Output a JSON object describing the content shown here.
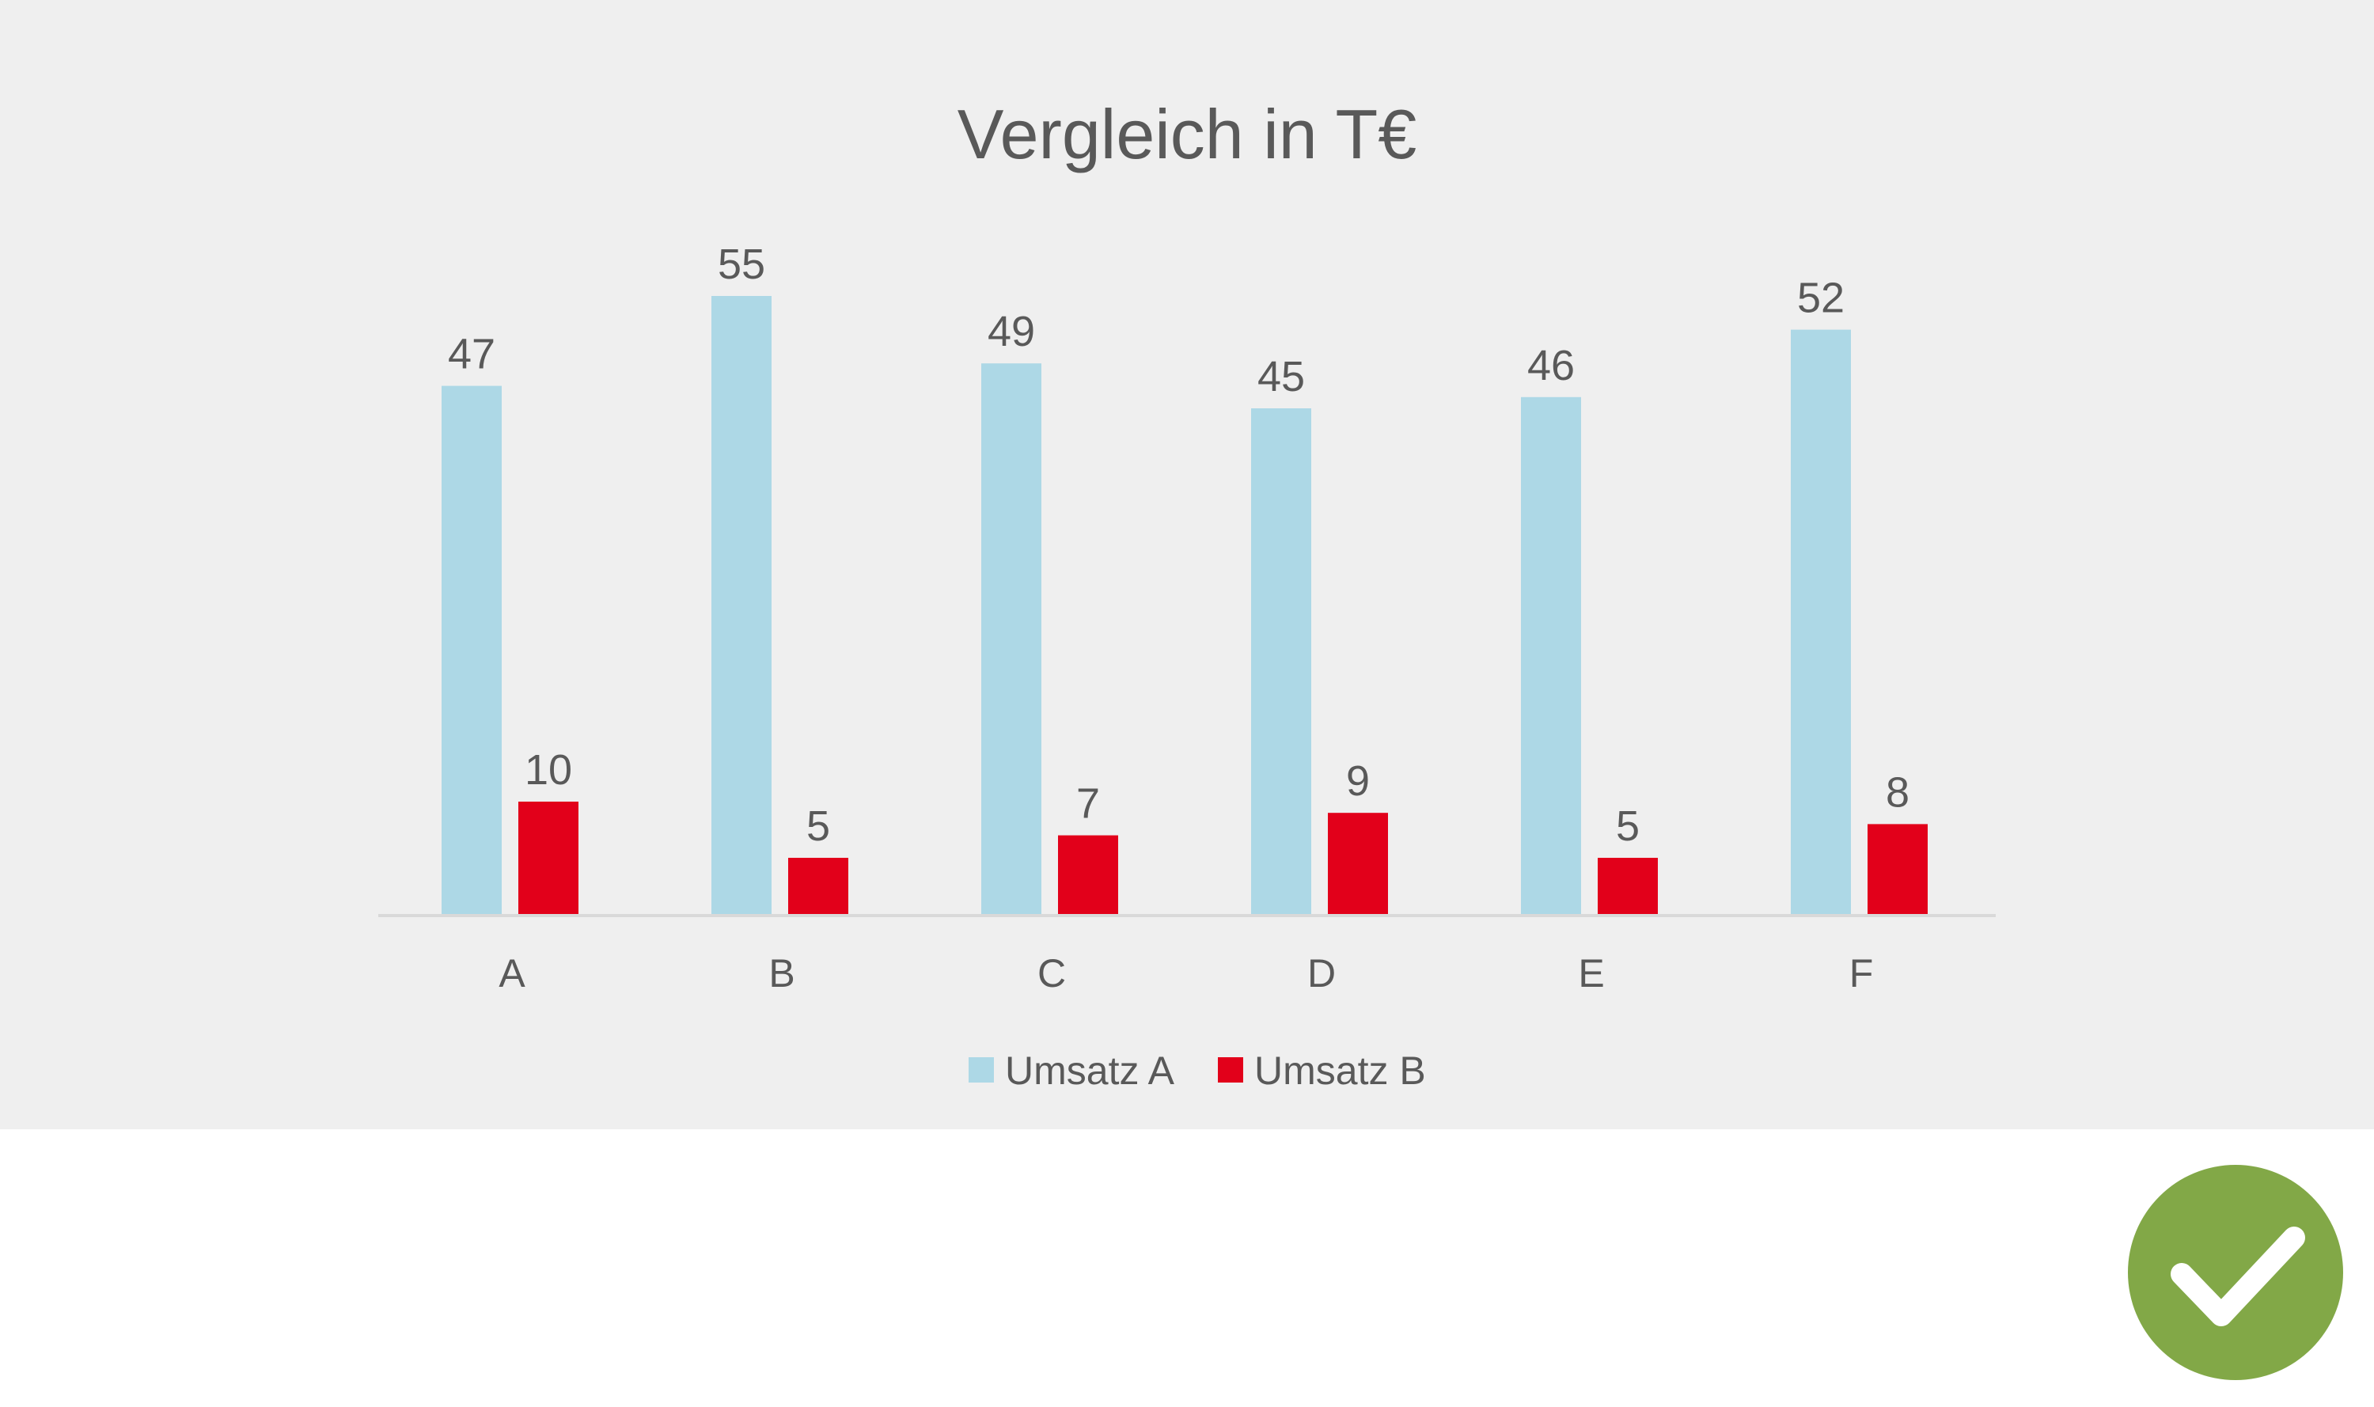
{
  "colors": {
    "panel_background": "#efefef",
    "series_a": "#add8e6",
    "series_b": "#e2001a",
    "text": "#595959",
    "axis": "#d9d9d9",
    "badge": "#82a847",
    "badge_check": "#ffffff"
  },
  "chart_data": {
    "type": "bar",
    "title": "Vergleich in T€",
    "categories": [
      "A",
      "B",
      "C",
      "D",
      "E",
      "F"
    ],
    "series": [
      {
        "name": "Umsatz A",
        "values": [
          47,
          55,
          49,
          45,
          46,
          52
        ]
      },
      {
        "name": "Umsatz B",
        "values": [
          10,
          5,
          7,
          9,
          5,
          8
        ]
      }
    ],
    "xlabel": "",
    "ylabel": "",
    "ylim": [
      0,
      55
    ],
    "grid": false,
    "data_labels": true,
    "legend_position": "bottom"
  },
  "badge": {
    "icon": "checkmark-icon"
  }
}
